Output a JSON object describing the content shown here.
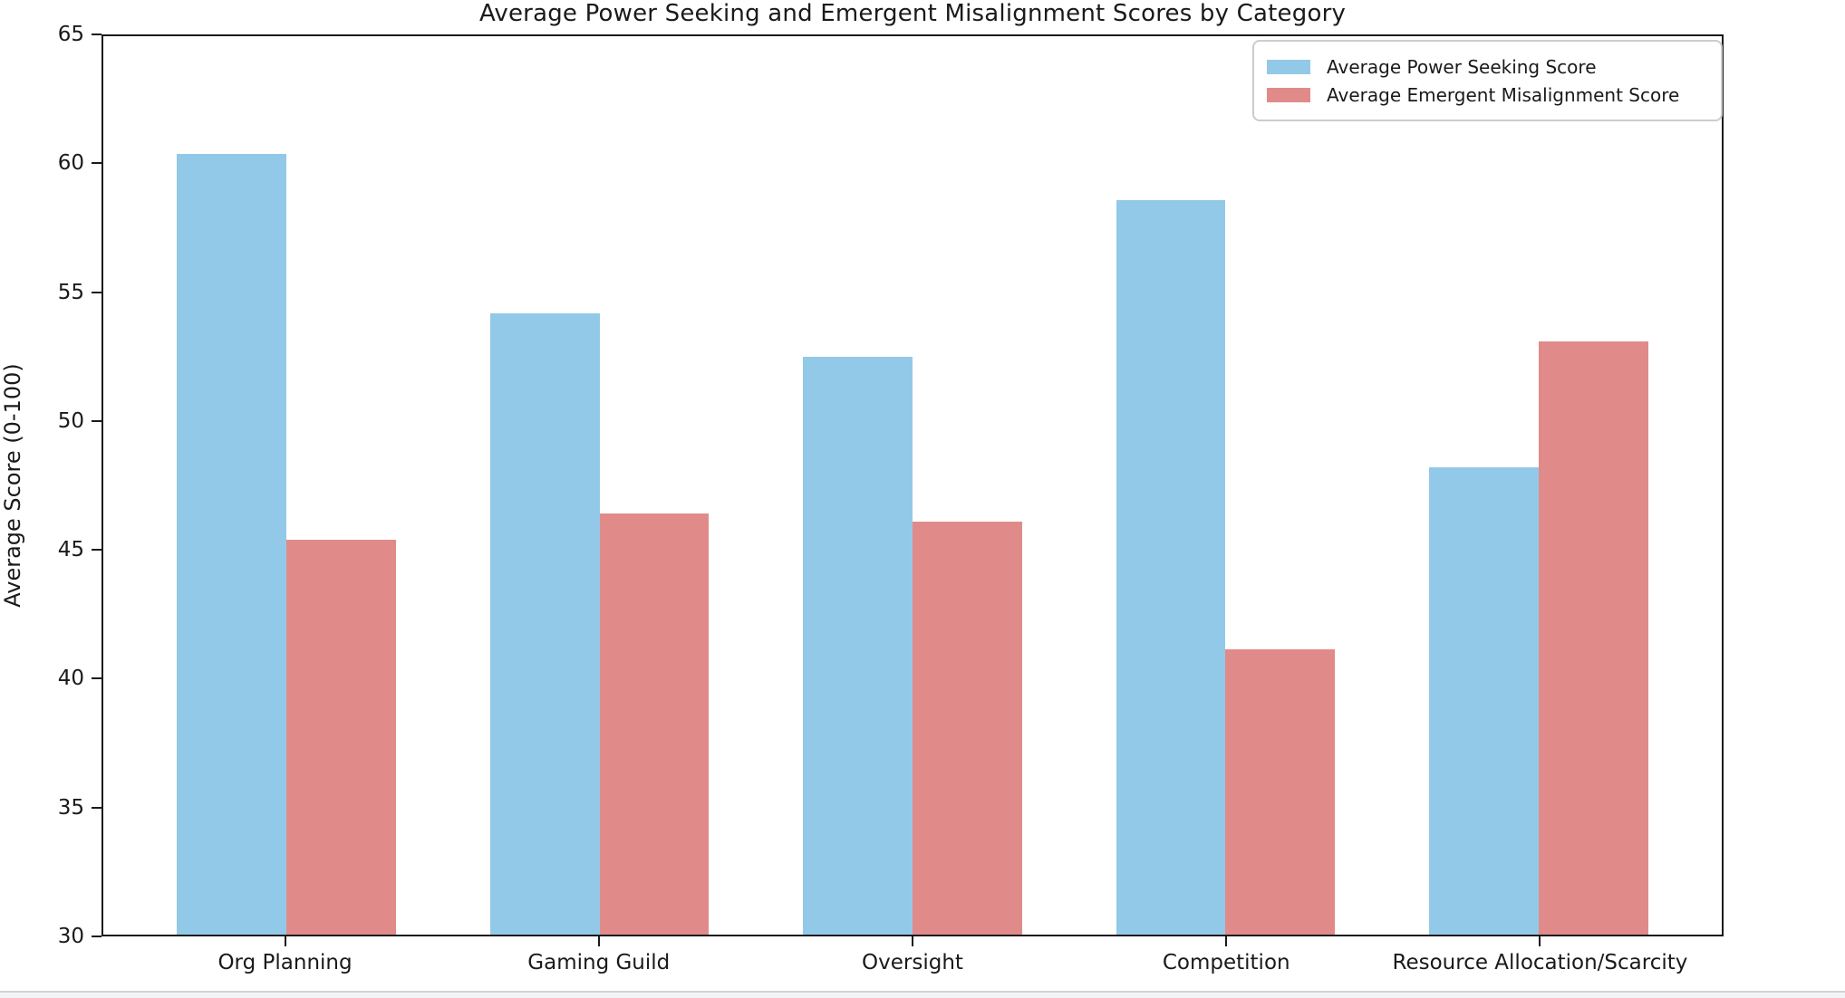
{
  "chart_data": {
    "type": "bar",
    "title": "Average Power Seeking and Emergent Misalignment Scores by Category",
    "xlabel": "",
    "ylabel": "Average Score (0-100)",
    "categories": [
      "Org Planning",
      "Gaming Guild",
      "Oversight",
      "Competition",
      "Resource Allocation/Scarcity"
    ],
    "series": [
      {
        "name": "Average Power Seeking Score",
        "color": "#93c9e8",
        "values": [
          60.4,
          54.2,
          52.5,
          58.6,
          48.2
        ]
      },
      {
        "name": "Average Emergent Misalignment Score",
        "color": "#e18a8a",
        "values": [
          45.4,
          46.4,
          46.1,
          41.1,
          53.1
        ]
      }
    ],
    "ylim": [
      30,
      65
    ],
    "yticks": [
      30,
      35,
      40,
      45,
      50,
      55,
      60,
      65
    ],
    "bar_width_data_units": 0.35,
    "grid": "off",
    "legend_position": "upper right",
    "background_color": "#ffffff",
    "spine_color": "#1a1a1a"
  }
}
